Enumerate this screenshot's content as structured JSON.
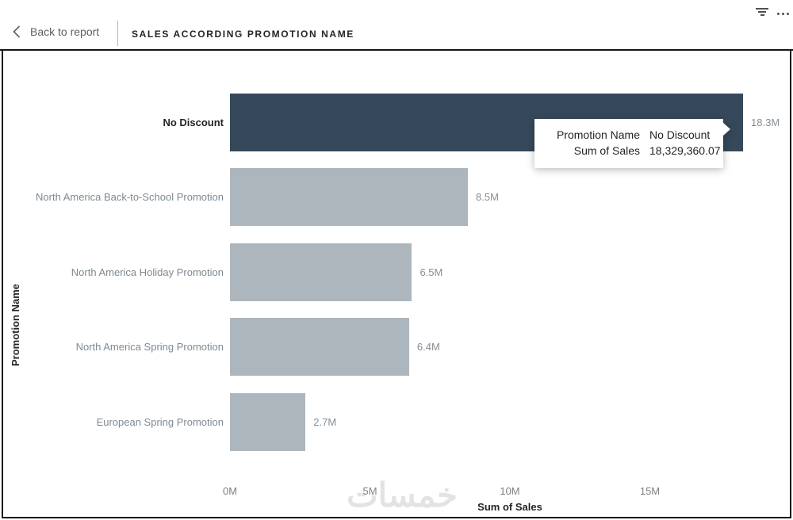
{
  "header": {
    "back_label": "Back to report",
    "title": "SALES ACCORDING PROMOTION NAME",
    "icons": [
      "chevron-left-icon",
      "filter-icon",
      "more-options-icon"
    ]
  },
  "chart_data": {
    "type": "bar",
    "orientation": "horizontal",
    "categories": [
      "No Discount",
      "North America Back-to-School Promotion",
      "North America Holiday Promotion",
      "North America Spring Promotion",
      "European Spring Promotion"
    ],
    "values": [
      18329360.07,
      8500000,
      6500000,
      6400000,
      2700000
    ],
    "value_labels": [
      "18.3M",
      "8.5M",
      "6.5M",
      "6.4M",
      "2.7M"
    ],
    "xlabel": "Sum of Sales",
    "ylabel": "Promotion Name",
    "x_ticks": [
      "0M",
      "5M",
      "10M",
      "15M"
    ],
    "x_tick_values": [
      0,
      5000000,
      10000000,
      15000000
    ],
    "xlim": [
      0,
      20000000
    ],
    "grid": false,
    "legend": false,
    "highlight_index": 0,
    "bar_color": "#aeb6bd",
    "highlight_color": "#36495a"
  },
  "tooltip": {
    "rows": [
      {
        "label": "Promotion Name",
        "value": "No Discount"
      },
      {
        "label": "Sum of Sales",
        "value": "18,329,360.07"
      }
    ]
  },
  "watermark": "خمسات"
}
